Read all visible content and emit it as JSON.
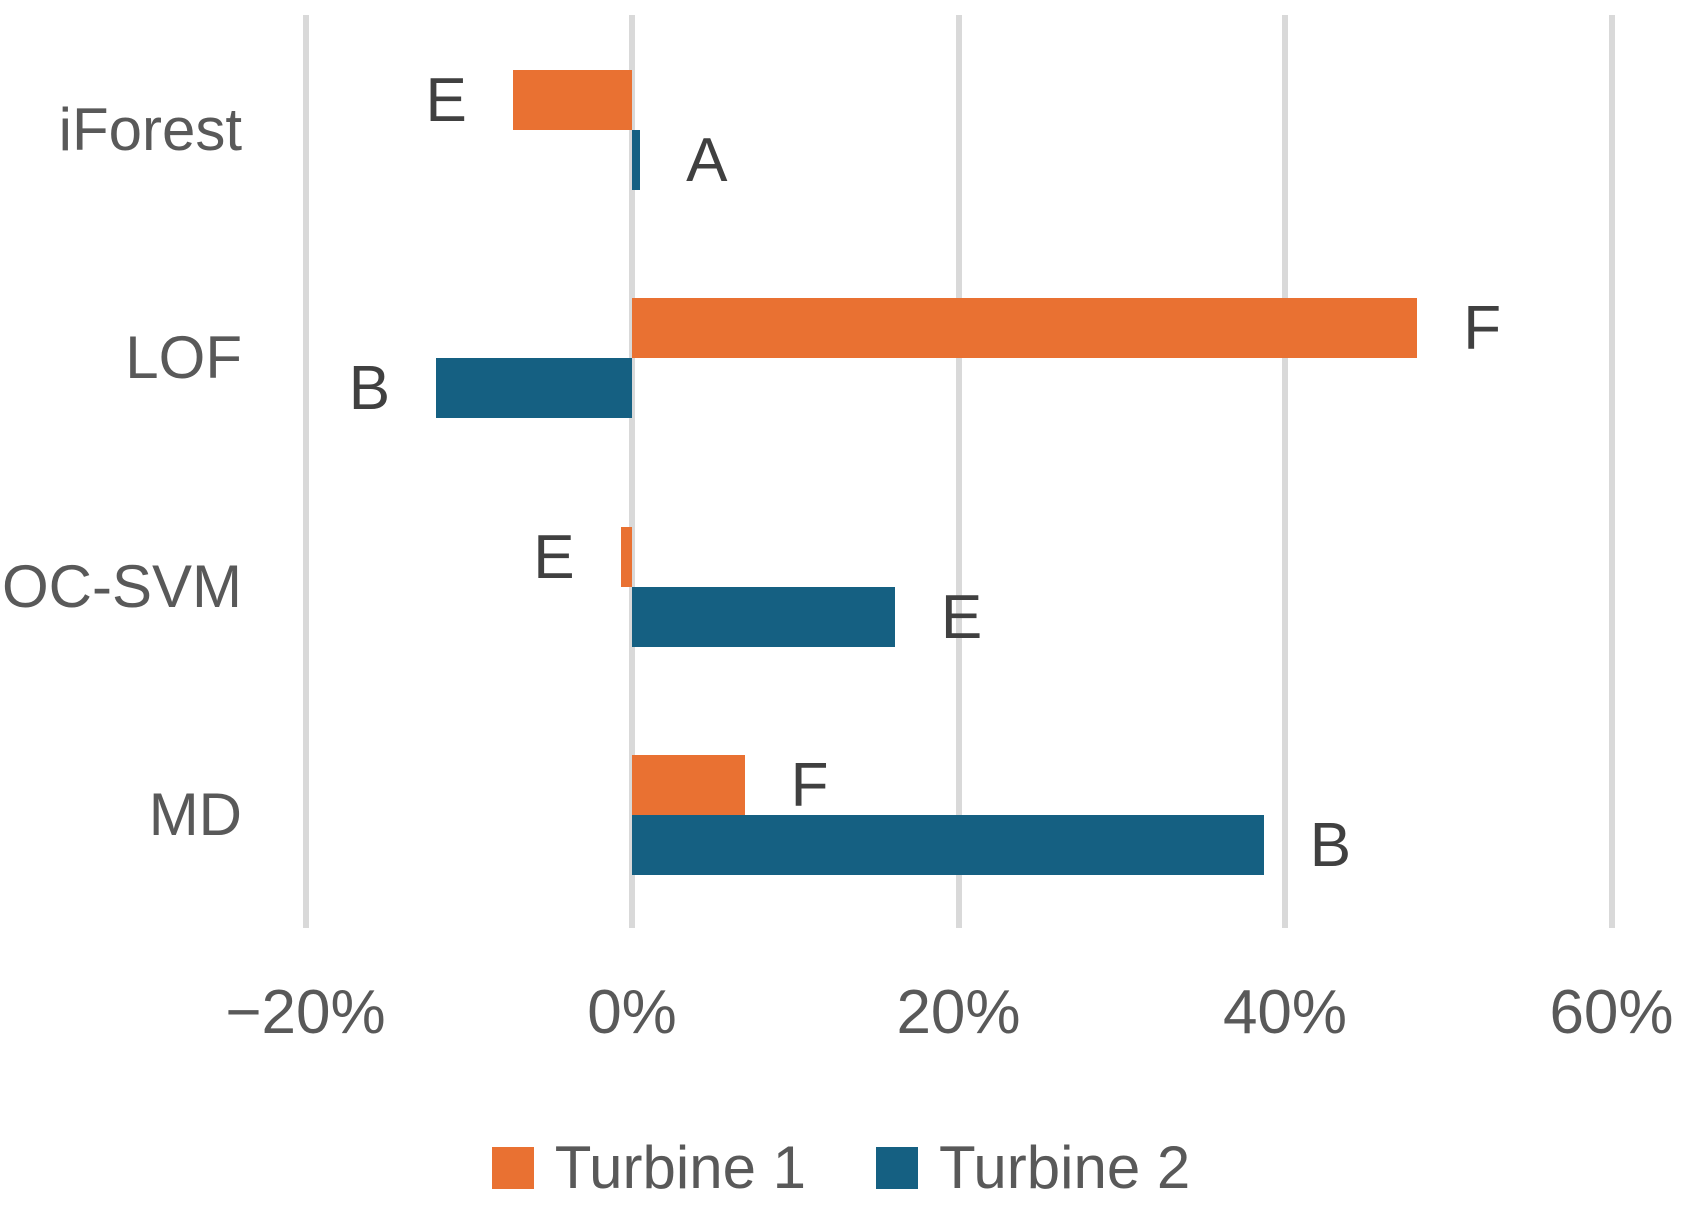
{
  "chart_data": {
    "type": "bar",
    "orientation": "horizontal",
    "title": "",
    "categories": [
      "iForest",
      "LOF",
      "OC-SVM",
      "MD"
    ],
    "series": [
      {
        "name": "Turbine 1",
        "color": "#E97132",
        "values": [
          -7.3,
          48.1,
          -0.7,
          6.9
        ],
        "point_labels": [
          "E",
          "F",
          "E",
          "F"
        ]
      },
      {
        "name": "Turbine 2",
        "color": "#156082",
        "values": [
          0.5,
          -12.0,
          16.1,
          38.7
        ],
        "point_labels": [
          "A",
          "B",
          "E",
          "B"
        ]
      }
    ],
    "x_axis": {
      "ticks": [
        -20,
        0,
        20,
        40,
        60
      ],
      "tick_labels": [
        "−20%",
        "0%",
        "20%",
        "40%",
        "60%"
      ],
      "range": [
        -20,
        60
      ],
      "unit": "%",
      "gridlines": true
    },
    "legend": {
      "position": "bottom",
      "entries": [
        "Turbine 1",
        "Turbine 2"
      ]
    },
    "colors": {
      "background": "#FFFFFF",
      "gridline": "#D9D9D9",
      "axis_text": "#595959",
      "category_text": "#595959",
      "data_label_text": "#404040"
    }
  }
}
